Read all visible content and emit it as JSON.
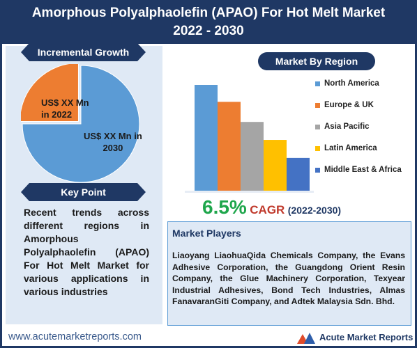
{
  "header": {
    "title_line1": "Amorphous Polyalphaolefin (APAO) For Hot Melt Market",
    "title_line2": "2022 - 2030"
  },
  "incremental": {
    "label": "Incremental Growth",
    "slice_2022_line1": "US$ XX Mn",
    "slice_2022_line2": "in 2022",
    "slice_2030_line1": "US$ XX Mn in",
    "slice_2030_line2": "2030"
  },
  "keypoint": {
    "label": "Key Point",
    "text": "Recent trends across different regions in Amorphous Polyalphaolefin (APAO) For Hot Melt Market for various applications in various industries"
  },
  "region": {
    "label": "Market By Region"
  },
  "cagr": {
    "value": "6.5%",
    "label": "CAGR",
    "years": "(2022-2030)"
  },
  "players": {
    "title": "Market Players",
    "text": "Liaoyang LiaohuaQida Chemicals Company, the Evans Adhesive Corporation, the Guangdong Orient Resin Company, the Glue Machinery Corporation, Texyear Industrial Adhesives, Bond Tech Industries, Almas FanavaranGiti Company, and Adtek Malaysia Sdn. Bhd."
  },
  "footer": {
    "url": "www.acutemarketreports.com",
    "logo_text": "Acute Market Reports"
  },
  "colors": {
    "navy": "#1f3864",
    "pie_blue": "#5b9bd5",
    "pie_orange": "#ed7d31"
  },
  "chart_data": [
    {
      "type": "pie",
      "title": "",
      "series": [
        {
          "name": "",
          "values": [
            25,
            75
          ]
        }
      ],
      "categories": [
        "2022",
        "2030"
      ],
      "colors": [
        "#ed7d31",
        "#5b9bd5"
      ]
    },
    {
      "type": "bar",
      "title": "",
      "categories": [
        "North America",
        "Europe & UK",
        "Asia Pacific",
        "Latin America",
        "Middle East & Africa"
      ],
      "values": [
        100,
        84,
        65,
        48,
        31
      ],
      "colors": [
        "#5b9bd5",
        "#ed7d31",
        "#a5a5a5",
        "#ffc000",
        "#4472c4"
      ],
      "xlabel": "",
      "ylabel": "",
      "ylim": [
        0,
        100
      ],
      "legend": "right",
      "grid": false
    }
  ]
}
